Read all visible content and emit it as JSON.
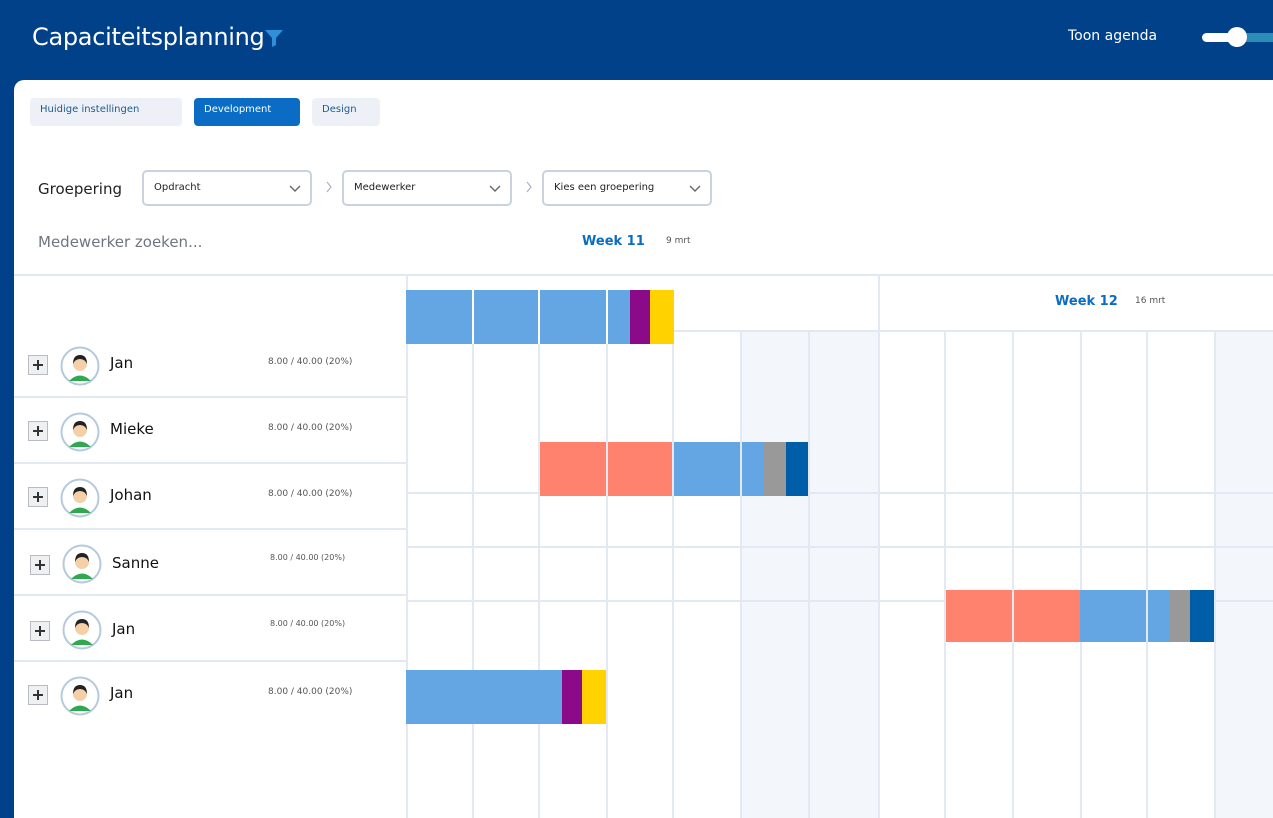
{
  "header": {
    "title": "Capaciteitsplanning",
    "filter_icon": "filter-icon",
    "agenda_label": "Toon agenda",
    "agenda_toggle_on": true
  },
  "tabs": [
    {
      "label": "Huidige instellingen",
      "active": false
    },
    {
      "label": "Development",
      "active": true
    },
    {
      "label": "Design",
      "active": false
    }
  ],
  "grouping": {
    "label": "Groepering",
    "selects": [
      "Opdracht",
      "Medewerker",
      "Kies een groepering"
    ]
  },
  "search": {
    "placeholder": "Medewerker zoeken..."
  },
  "weeks": [
    {
      "label": "Week 11",
      "date": "9 mrt"
    },
    {
      "label": "Week 12",
      "date": "16 mrt"
    }
  ],
  "people": [
    {
      "name": "Jan",
      "hours": "8.00 / 40.00 (20%)"
    },
    {
      "name": "Mieke",
      "hours": "8.00 / 40.00 (20%)"
    },
    {
      "name": "Johan",
      "hours": "8.00 / 40.00 (20%)"
    },
    {
      "name": "Sanne",
      "hours": "8.00 / 40.00 (20%)"
    },
    {
      "name": "Jan",
      "hours": "8.00 / 40.00 (20%)"
    },
    {
      "name": "Jan",
      "hours": "8.00 / 40.00 (20%)"
    }
  ],
  "colors": {
    "header_bg": "#00418a",
    "accent": "#0a6cc4",
    "task_blue": "#64a6e3",
    "task_red": "#ff826e",
    "task_purple": "#8a0a8a",
    "task_yellow": "#ffd200",
    "task_grey": "#999999",
    "task_darkblue": "#005ea8"
  }
}
